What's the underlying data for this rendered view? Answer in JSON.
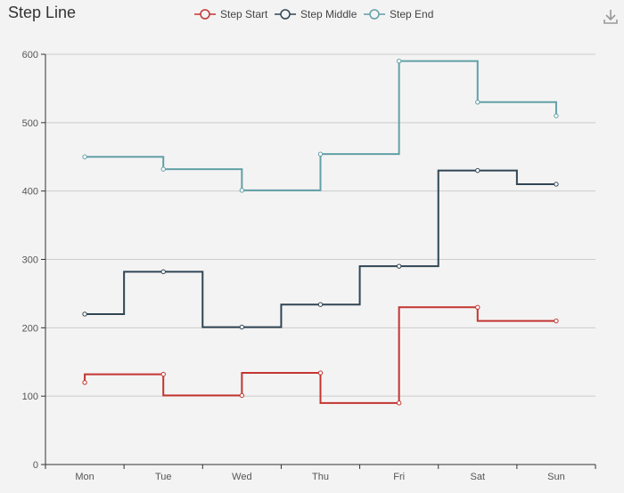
{
  "toolbar": {
    "title": "Step Line",
    "download_icon": "download-icon"
  },
  "chart_data": {
    "type": "line",
    "step": true,
    "title": "Step Line",
    "categories": [
      "Mon",
      "Tue",
      "Wed",
      "Thu",
      "Fri",
      "Sat",
      "Sun"
    ],
    "ylim": [
      0,
      600
    ],
    "yticks": [
      0,
      100,
      200,
      300,
      400,
      500,
      600
    ],
    "grid": true,
    "legend_position": "top-center",
    "series": [
      {
        "name": "Step Start",
        "step_mode": "start",
        "color": "#c23531",
        "values": [
          120,
          132,
          101,
          134,
          90,
          230,
          210
        ]
      },
      {
        "name": "Step Middle",
        "step_mode": "middle",
        "color": "#2f4554",
        "values": [
          220,
          282,
          201,
          234,
          290,
          430,
          410
        ]
      },
      {
        "name": "Step End",
        "step_mode": "end",
        "color": "#61a0a8",
        "values": [
          450,
          432,
          401,
          454,
          590,
          530,
          510
        ]
      }
    ]
  }
}
